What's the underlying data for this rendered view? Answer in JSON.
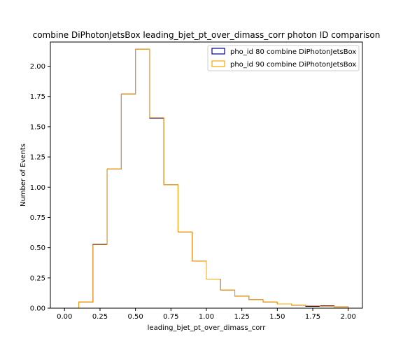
{
  "chart_data": {
    "type": "histogram-step",
    "title": "combine DiPhotonJetsBox leading_bjet_pt_over_dimass_corr photon ID comparison",
    "xlabel": "leading_bjet_pt_over_dimass_corr",
    "ylabel": "Number of Events",
    "xlim": [
      -0.1,
      2.1
    ],
    "ylim": [
      0.0,
      2.2
    ],
    "xticks": [
      "0.00",
      "0.25",
      "0.50",
      "0.75",
      "1.00",
      "1.25",
      "1.50",
      "1.75",
      "2.00"
    ],
    "yticks": [
      "0.00",
      "0.25",
      "0.50",
      "0.75",
      "1.00",
      "1.25",
      "1.50",
      "1.75",
      "2.00"
    ],
    "legend_position": "top-right",
    "bin_edges": [
      0.0,
      0.1,
      0.2,
      0.3,
      0.4,
      0.5,
      0.6,
      0.7,
      0.8,
      0.9,
      1.0,
      1.1,
      1.2,
      1.3,
      1.4,
      1.5,
      1.6,
      1.7,
      1.8,
      1.9,
      2.0
    ],
    "series": [
      {
        "name": "pho_id 80 combine DiPhotonJetsBox",
        "color": "#00008b",
        "values": [
          0.0,
          0.05,
          0.53,
          1.15,
          1.77,
          2.14,
          1.57,
          1.02,
          0.63,
          0.39,
          0.24,
          0.15,
          0.1,
          0.07,
          0.05,
          0.035,
          0.025,
          0.015,
          0.02,
          0.01
        ]
      },
      {
        "name": "pho_id 90 combine DiPhotonJetsBox",
        "color": "#ffa500",
        "values": [
          0.0,
          0.05,
          0.525,
          1.15,
          1.77,
          2.14,
          1.575,
          1.02,
          0.63,
          0.39,
          0.24,
          0.15,
          0.1,
          0.07,
          0.05,
          0.035,
          0.025,
          0.02,
          0.015,
          0.01
        ]
      }
    ]
  }
}
